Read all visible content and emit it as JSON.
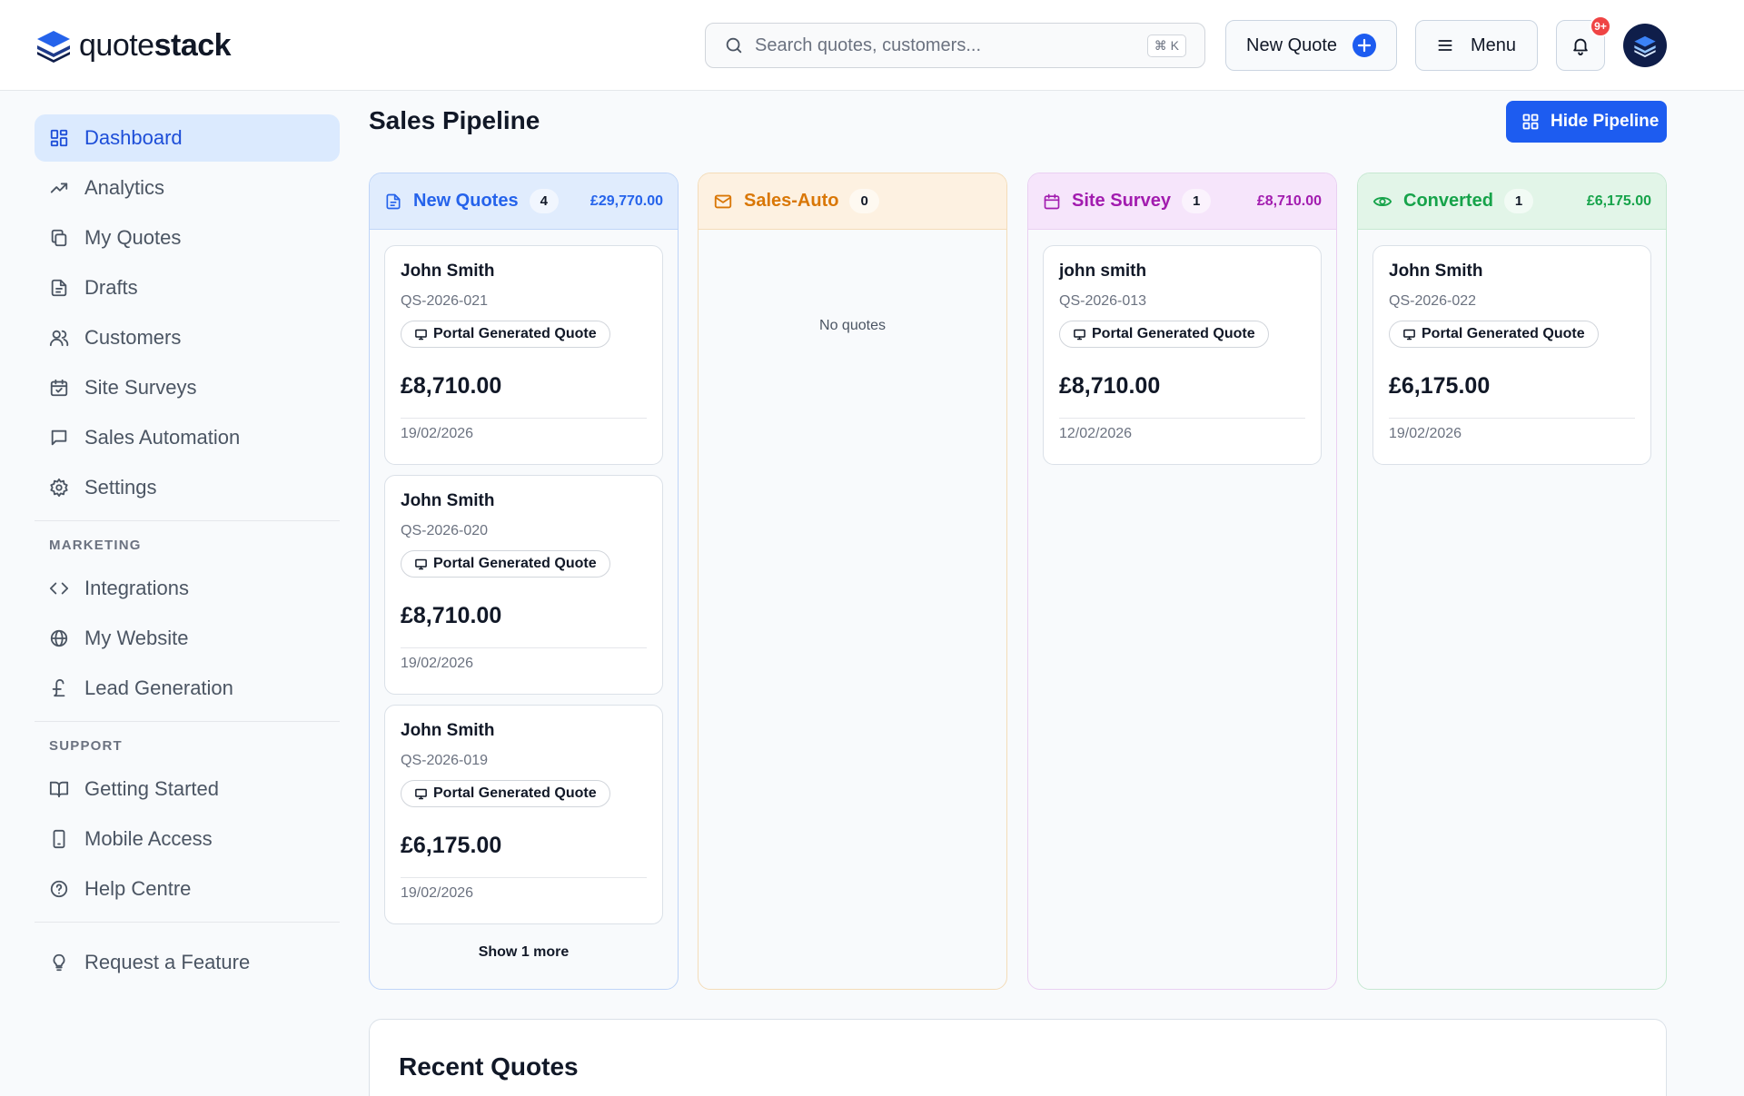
{
  "header": {
    "logo_light": "quote",
    "logo_bold": "stack",
    "search_placeholder": "Search quotes, customers...",
    "search_shortcut": "⌘ K",
    "new_quote_label": "New Quote",
    "menu_label": "Menu",
    "notification_badge": "9+"
  },
  "sidebar": {
    "main": [
      {
        "label": "Dashboard",
        "icon": "dashboard-icon",
        "active": true
      },
      {
        "label": "Analytics",
        "icon": "trending-up-icon"
      },
      {
        "label": "My Quotes",
        "icon": "copy-icon"
      },
      {
        "label": "Drafts",
        "icon": "file-icon"
      },
      {
        "label": "Customers",
        "icon": "users-icon"
      },
      {
        "label": "Site Surveys",
        "icon": "calendar-check-icon"
      },
      {
        "label": "Sales Automation",
        "icon": "message-square-icon"
      },
      {
        "label": "Settings",
        "icon": "gear-icon"
      }
    ],
    "marketing_label": "MARKETING",
    "marketing": [
      {
        "label": "Integrations",
        "icon": "code-icon"
      },
      {
        "label": "My Website",
        "icon": "globe-icon"
      },
      {
        "label": "Lead Generation",
        "icon": "pound-icon"
      }
    ],
    "support_label": "SUPPORT",
    "support": [
      {
        "label": "Getting Started",
        "icon": "book-open-icon"
      },
      {
        "label": "Mobile Access",
        "icon": "smartphone-icon"
      },
      {
        "label": "Help Centre",
        "icon": "help-circle-icon"
      }
    ],
    "footer": [
      {
        "label": "Request a Feature",
        "icon": "lightbulb-icon"
      }
    ]
  },
  "main": {
    "title": "Sales Pipeline",
    "hide_pipeline_label": "Hide Pipeline",
    "recent_title": "Recent Quotes"
  },
  "pipeline": {
    "columns": [
      {
        "title": "New Quotes",
        "count": "4",
        "total": "£29,770.00",
        "color": "#2563eb",
        "header_bg": "#e0ecfd",
        "border": "#bfd5f8",
        "cards": [
          {
            "name": "John Smith",
            "ref": "QS-2026-021",
            "tag": "Portal Generated Quote",
            "amount": "£8,710.00",
            "date": "19/02/2026"
          },
          {
            "name": "John Smith",
            "ref": "QS-2026-020",
            "tag": "Portal Generated Quote",
            "amount": "£8,710.00",
            "date": "19/02/2026"
          },
          {
            "name": "John Smith",
            "ref": "QS-2026-019",
            "tag": "Portal Generated Quote",
            "amount": "£6,175.00",
            "date": "19/02/2026"
          }
        ],
        "show_more": "Show 1 more"
      },
      {
        "title": "Sales-Auto",
        "count": "0",
        "total": "",
        "color": "#d97706",
        "header_bg": "#fdf1e1",
        "border": "#f4dcb8",
        "cards": [],
        "empty": "No quotes"
      },
      {
        "title": "Site Survey",
        "count": "1",
        "total": "£8,710.00",
        "color": "#a21caf",
        "header_bg": "#f6e5fb",
        "border": "#ead0f2",
        "cards": [
          {
            "name": "john smith",
            "ref": "QS-2026-013",
            "tag": "Portal Generated Quote",
            "amount": "£8,710.00",
            "date": "12/02/2026"
          }
        ]
      },
      {
        "title": "Converted",
        "count": "1",
        "total": "£6,175.00",
        "color": "#16a34a",
        "header_bg": "#e2f5e8",
        "border": "#c6e8d1",
        "cards": [
          {
            "name": "John Smith",
            "ref": "QS-2026-022",
            "tag": "Portal Generated Quote",
            "amount": "£6,175.00",
            "date": "19/02/2026"
          }
        ]
      }
    ]
  }
}
